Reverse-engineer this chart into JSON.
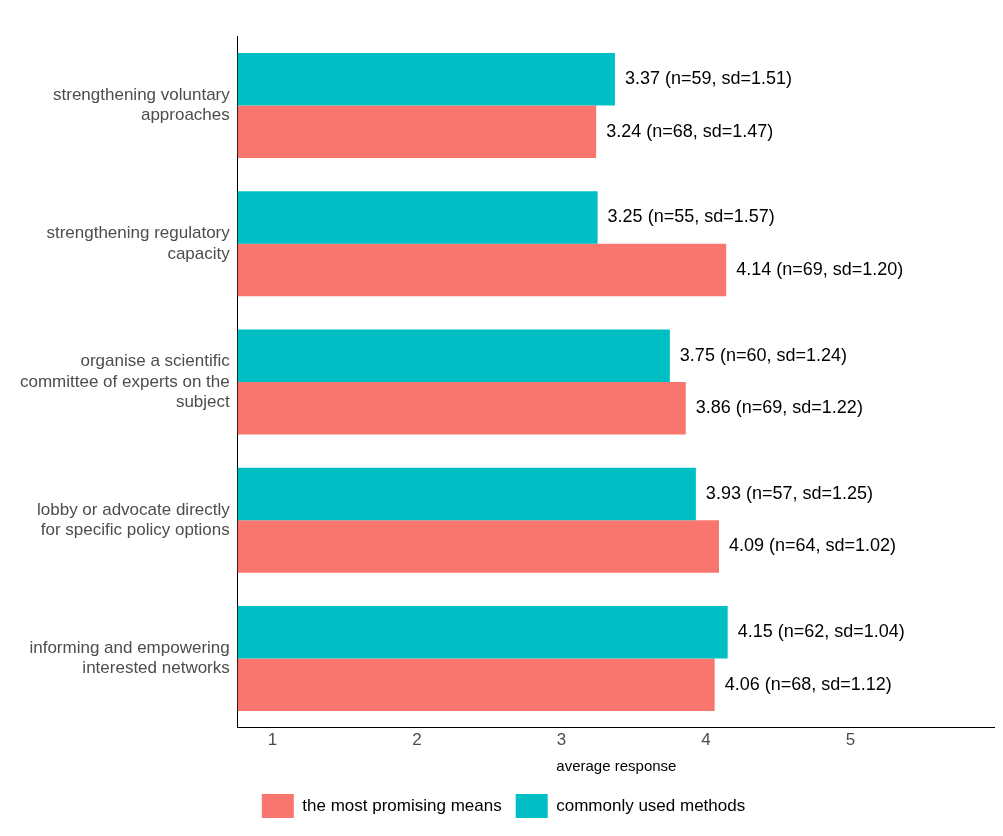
{
  "chart_data": {
    "type": "bar",
    "orientation": "horizontal",
    "categories": [
      "strengthening voluntary approaches",
      "strengthening regulatory capacity",
      "organise a scientific committee of experts on the subject",
      "lobby or advocate directly for specific policy options",
      "informing and empowering interested networks"
    ],
    "series": [
      {
        "name": "commonly used methods",
        "color": "#00bfc4",
        "values": [
          3.37,
          3.25,
          3.75,
          3.93,
          4.15
        ],
        "value_labels": [
          "3.37 (n=59, sd=1.51)",
          "3.25 (n=55, sd=1.57)",
          "3.75 (n=60, sd=1.24)",
          "3.93 (n=57, sd=1.25)",
          "4.15 (n=62, sd=1.04)"
        ]
      },
      {
        "name": "the most promising means",
        "color": "#f8766d",
        "values": [
          3.24,
          4.14,
          3.86,
          4.09,
          4.06
        ],
        "value_labels": [
          "3.24 (n=68, sd=1.47)",
          "4.14 (n=69, sd=1.20)",
          "3.86 (n=69, sd=1.22)",
          "4.09 (n=64, sd=1.02)",
          "4.06 (n=68, sd=1.12)"
        ]
      }
    ],
    "xlabel": "average response",
    "xlim": [
      0.76,
      6
    ],
    "xticks": [
      1,
      2,
      3,
      4,
      5
    ],
    "grid": false,
    "legend": "bottom"
  }
}
